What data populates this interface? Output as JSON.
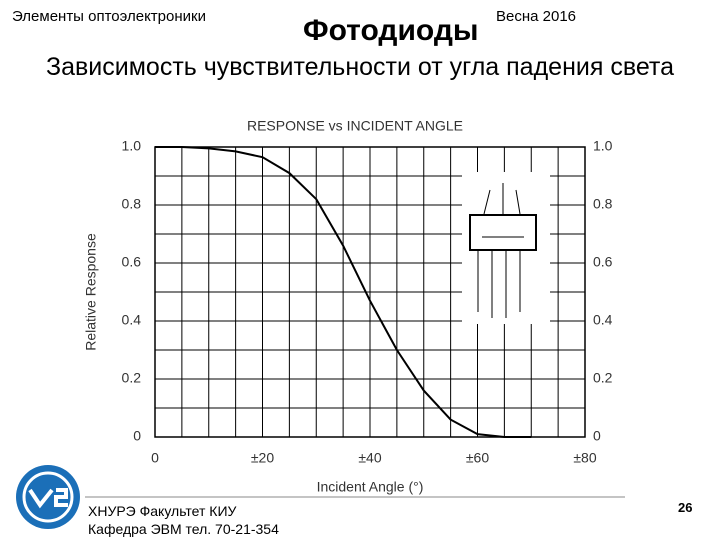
{
  "slide": {
    "course": "Элементы оптоэлектроники",
    "heading": "Фотодиоды",
    "term": "Весна 2016",
    "subtitle": "Зависимость чувствительности от угла падения света",
    "footer_line1": "ХНУРЭ Факультет КИУ",
    "footer_line2": "Кафедра ЭВМ   тел. 70-21-354",
    "page": "26"
  },
  "chart_data": {
    "type": "line",
    "title": "RESPONSE vs INCIDENT ANGLE",
    "x_label": "Incident Angle (°)",
    "y_label": "Relative Response",
    "x": [
      0,
      5,
      10,
      15,
      20,
      25,
      30,
      35,
      40,
      45,
      50,
      55,
      60,
      65,
      70
    ],
    "values": [
      1.0,
      1.0,
      0.995,
      0.985,
      0.965,
      0.91,
      0.82,
      0.66,
      0.47,
      0.3,
      0.16,
      0.06,
      0.01,
      0,
      0
    ],
    "color": "#000000",
    "xlim": [
      0,
      80
    ],
    "xticks": [
      0,
      {
        "value": 20,
        "label": "±20"
      },
      {
        "value": 40,
        "label": "±40"
      },
      {
        "value": 60,
        "label": "±60"
      },
      {
        "value": 80,
        "label": "±80"
      }
    ],
    "ylim": [
      0,
      1
    ],
    "yticks": [
      0,
      0.2,
      0.4,
      0.6,
      0.8,
      {
        "value": 1,
        "label": "1.0"
      }
    ],
    "y2lim": [
      0,
      1
    ],
    "y2ticks": [
      0,
      0.2,
      0.4,
      0.6,
      0.8,
      {
        "value": 1,
        "label": "1.0"
      }
    ],
    "grid": true
  }
}
